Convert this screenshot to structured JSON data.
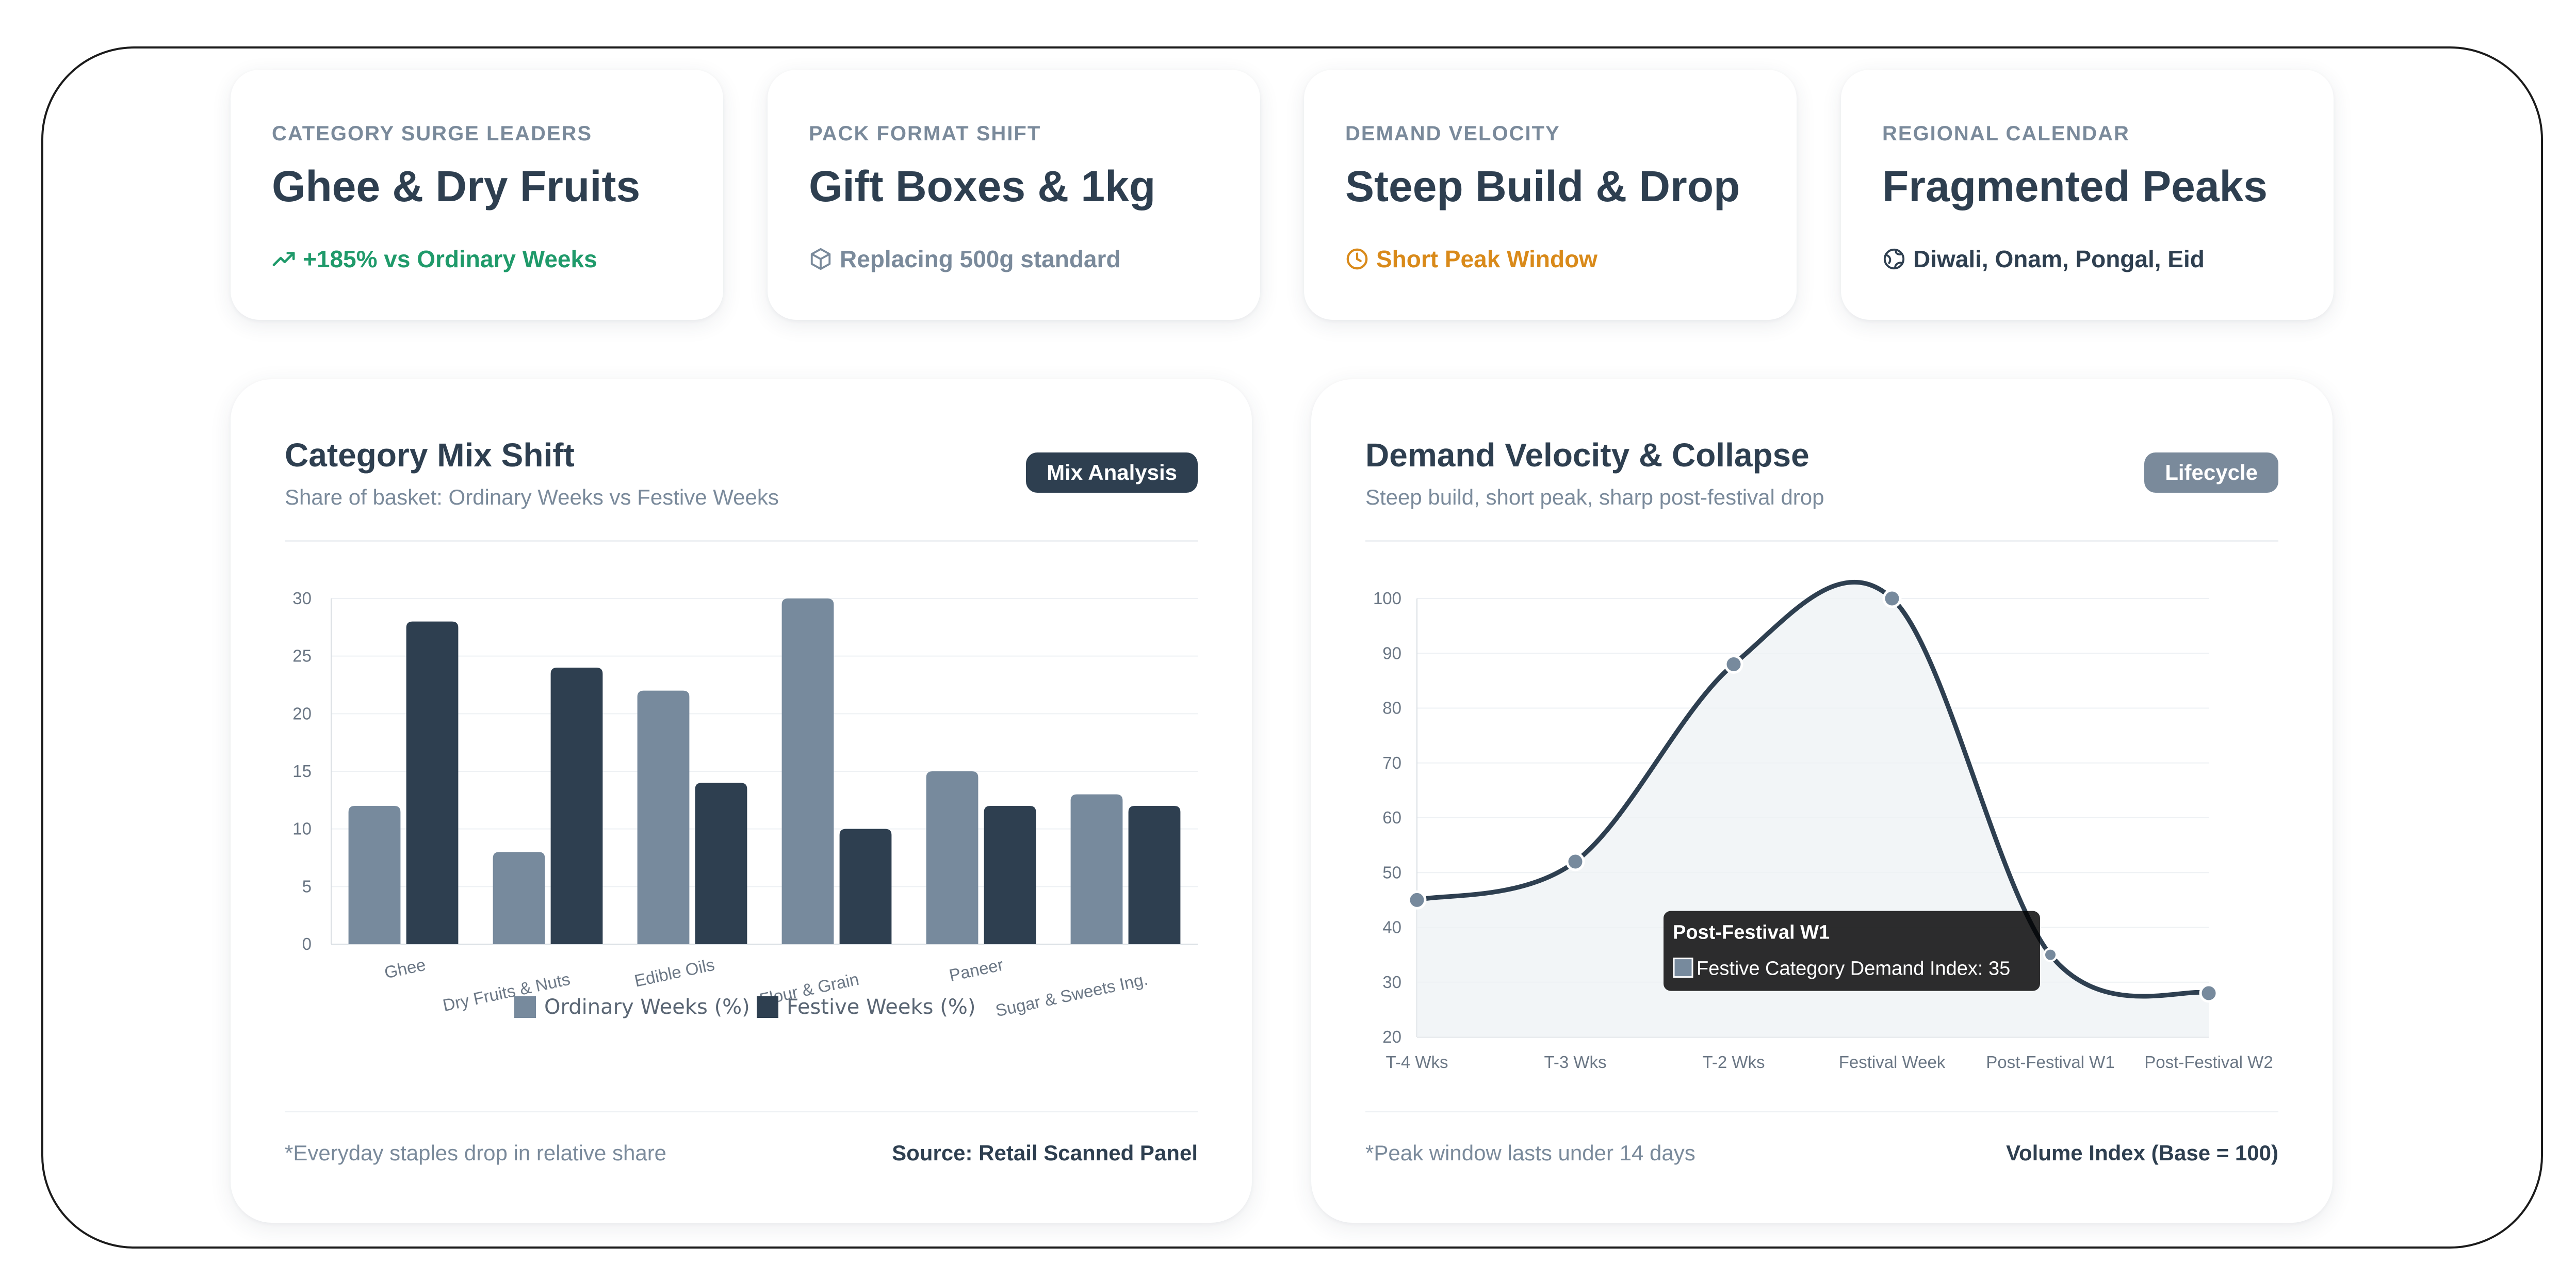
{
  "kpis": [
    {
      "label": "CATEGORY SURGE LEADERS",
      "value": "Ghee & Dry Fruits",
      "sub": "+185% vs Ordinary Weeks",
      "icon": "trend-up-icon",
      "sub_color": "#1f9a6a"
    },
    {
      "label": "PACK FORMAT SHIFT",
      "value": "Gift Boxes & 1kg",
      "sub": "Replacing 500g standard",
      "icon": "box-icon",
      "sub_color": "#7a8a9b"
    },
    {
      "label": "DEMAND VELOCITY",
      "value": "Steep Build & Drop",
      "sub": "Short Peak Window",
      "icon": "clock-icon",
      "sub_color": "#d98a1a"
    },
    {
      "label": "REGIONAL CALENDAR",
      "value": "Fragmented Peaks",
      "sub": "Diwali, Onam, Pongal, Eid",
      "icon": "globe-icon",
      "sub_color": "#2e3f50"
    }
  ],
  "mix_card": {
    "title": "Category Mix Shift",
    "subtitle": "Share of basket: Ordinary Weeks vs Festive Weeks",
    "badge": "Mix Analysis",
    "badge_color": "#2e3f50",
    "footnote": "*Everyday staples drop in relative share",
    "source": "Source: Retail Scanned Panel"
  },
  "velocity_card": {
    "title": "Demand Velocity & Collapse",
    "subtitle": "Steep build, short peak, sharp post-festival drop",
    "badge": "Lifecycle",
    "badge_color": "#7a8a9b",
    "footnote": "*Peak window lasts under 14 days",
    "source": "Volume Index (Base = 100)",
    "tooltip": {
      "title": "Post-Festival W1",
      "body": "Festive Category Demand Index: 35"
    }
  },
  "chart_data": [
    {
      "type": "bar",
      "categories": [
        "Ghee",
        "Dry Fruits & Nuts",
        "Edible Oils",
        "Flour & Grain",
        "Paneer",
        "Sugar & Sweets Ing."
      ],
      "series": [
        {
          "name": "Ordinary Weeks (%)",
          "values": [
            12,
            8,
            22,
            30,
            15,
            13
          ],
          "color": "#778a9d"
        },
        {
          "name": "Festive Weeks (%)",
          "values": [
            28,
            24,
            14,
            10,
            12,
            12
          ],
          "color": "#2e3f50"
        }
      ],
      "yticks": [
        0,
        5,
        10,
        15,
        20,
        25,
        30
      ],
      "ylim": [
        0,
        30
      ],
      "legend": "bottom",
      "grid": true
    },
    {
      "type": "area",
      "categories": [
        "T-4 Wks",
        "T-3 Wks",
        "T-2 Wks",
        "Festival Week",
        "Post-Festival W1",
        "Post-Festival W2"
      ],
      "series": [
        {
          "values": [
            45,
            52,
            88,
            100,
            35,
            28
          ],
          "color": "#2e3f50"
        }
      ],
      "yticks": [
        20,
        30,
        40,
        50,
        60,
        70,
        80,
        90,
        100
      ],
      "ylim": [
        20,
        100
      ],
      "grid": true
    }
  ]
}
